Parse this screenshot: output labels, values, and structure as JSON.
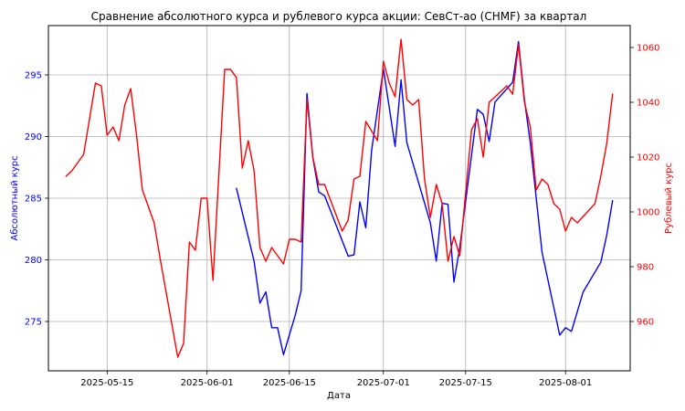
{
  "chart_data": {
    "type": "line",
    "title": "Сравнение абсолютного курса и рублевого курса акции: СевСт-ао (CHMF) за квартал",
    "xlabel": "Дата",
    "ylabel_left": "Абсолютный курс",
    "ylabel_right": "Рублевый курс",
    "grid": true,
    "colors": {
      "abs": "#0000ff",
      "rub": "#ff0000",
      "grid": "#b0b0b0",
      "axis": "#000000"
    },
    "x_ticks": [
      "2025-05-15",
      "2025-06-01",
      "2025-06-15",
      "2025-07-01",
      "2025-07-15",
      "2025-08-01"
    ],
    "x_range": [
      "2025-05-05",
      "2025-08-12"
    ],
    "y_left": {
      "ticks": [
        275,
        280,
        285,
        290,
        295
      ],
      "range": [
        271,
        299
      ]
    },
    "y_right": {
      "ticks": [
        960,
        980,
        1000,
        1020,
        1040,
        1060
      ],
      "range": [
        942,
        1068
      ]
    },
    "series": [
      {
        "axis": "left",
        "color": "#0000ff",
        "points": [
          [
            "2025-06-06",
            285.8
          ],
          [
            "2025-06-09",
            279.9
          ],
          [
            "2025-06-10",
            276.5
          ],
          [
            "2025-06-11",
            277.4
          ],
          [
            "2025-06-12",
            274.5
          ],
          [
            "2025-06-13",
            274.5
          ],
          [
            "2025-06-14",
            272.3
          ],
          [
            "2025-06-16",
            275.5
          ],
          [
            "2025-06-17",
            277.5
          ],
          [
            "2025-06-18",
            293.5
          ],
          [
            "2025-06-19",
            288.3
          ],
          [
            "2025-06-20",
            285.5
          ],
          [
            "2025-06-21",
            285.2
          ],
          [
            "2025-06-22",
            284.0
          ],
          [
            "2025-06-25",
            280.3
          ],
          [
            "2025-06-26",
            280.4
          ],
          [
            "2025-06-27",
            284.7
          ],
          [
            "2025-06-28",
            282.6
          ],
          [
            "2025-06-29",
            288.9
          ],
          [
            "2025-07-01",
            295.5
          ],
          [
            "2025-07-03",
            289.2
          ],
          [
            "2025-07-04",
            294.6
          ],
          [
            "2025-07-05",
            289.5
          ],
          [
            "2025-07-09",
            283.0
          ],
          [
            "2025-07-10",
            279.9
          ],
          [
            "2025-07-11",
            284.6
          ],
          [
            "2025-07-12",
            284.5
          ],
          [
            "2025-07-13",
            278.2
          ],
          [
            "2025-07-14",
            281.0
          ],
          [
            "2025-07-17",
            292.2
          ],
          [
            "2025-07-18",
            291.8
          ],
          [
            "2025-07-19",
            289.6
          ],
          [
            "2025-07-20",
            292.8
          ],
          [
            "2025-07-23",
            294.4
          ],
          [
            "2025-07-24",
            297.7
          ],
          [
            "2025-07-25",
            293.0
          ],
          [
            "2025-07-26",
            289.5
          ],
          [
            "2025-07-28",
            280.6
          ],
          [
            "2025-07-31",
            273.9
          ],
          [
            "2025-08-01",
            274.5
          ],
          [
            "2025-08-02",
            274.2
          ],
          [
            "2025-08-04",
            277.4
          ],
          [
            "2025-08-07",
            279.8
          ],
          [
            "2025-08-08",
            282.0
          ],
          [
            "2025-08-09",
            284.8
          ]
        ]
      },
      {
        "axis": "right",
        "color": "#ff0000",
        "points": [
          [
            "2025-05-08",
            1013
          ],
          [
            "2025-05-09",
            1015
          ],
          [
            "2025-05-11",
            1021
          ],
          [
            "2025-05-13",
            1047
          ],
          [
            "2025-05-14",
            1046
          ],
          [
            "2025-05-15",
            1028
          ],
          [
            "2025-05-16",
            1031
          ],
          [
            "2025-05-17",
            1026
          ],
          [
            "2025-05-18",
            1039
          ],
          [
            "2025-05-19",
            1045
          ],
          [
            "2025-05-20",
            1028
          ],
          [
            "2025-05-21",
            1008
          ],
          [
            "2025-05-23",
            996
          ],
          [
            "2025-05-24",
            983
          ],
          [
            "2025-05-27",
            947
          ],
          [
            "2025-05-28",
            952
          ],
          [
            "2025-05-29",
            989
          ],
          [
            "2025-05-30",
            986
          ],
          [
            "2025-05-31",
            1005
          ],
          [
            "2025-06-01",
            1005
          ],
          [
            "2025-06-02",
            975
          ],
          [
            "2025-06-04",
            1052
          ],
          [
            "2025-06-05",
            1052
          ],
          [
            "2025-06-06",
            1049
          ],
          [
            "2025-06-07",
            1016
          ],
          [
            "2025-06-08",
            1026
          ],
          [
            "2025-06-09",
            1015
          ],
          [
            "2025-06-10",
            987
          ],
          [
            "2025-06-11",
            982
          ],
          [
            "2025-06-12",
            987
          ],
          [
            "2025-06-14",
            981
          ],
          [
            "2025-06-15",
            990
          ],
          [
            "2025-06-16",
            990
          ],
          [
            "2025-06-17",
            989
          ],
          [
            "2025-06-18",
            1041
          ],
          [
            "2025-06-19",
            1020
          ],
          [
            "2025-06-20",
            1010
          ],
          [
            "2025-06-21",
            1010
          ],
          [
            "2025-06-24",
            993
          ],
          [
            "2025-06-25",
            997
          ],
          [
            "2025-06-26",
            1012
          ],
          [
            "2025-06-27",
            1013
          ],
          [
            "2025-06-28",
            1033
          ],
          [
            "2025-06-30",
            1026
          ],
          [
            "2025-07-01",
            1055
          ],
          [
            "2025-07-02",
            1047
          ],
          [
            "2025-07-03",
            1042
          ],
          [
            "2025-07-04",
            1063
          ],
          [
            "2025-07-05",
            1041
          ],
          [
            "2025-07-06",
            1039
          ],
          [
            "2025-07-07",
            1041
          ],
          [
            "2025-07-08",
            1012
          ],
          [
            "2025-07-09",
            998
          ],
          [
            "2025-07-10",
            1010
          ],
          [
            "2025-07-11",
            1003
          ],
          [
            "2025-07-12",
            982
          ],
          [
            "2025-07-13",
            991
          ],
          [
            "2025-07-14",
            984
          ],
          [
            "2025-07-16",
            1030
          ],
          [
            "2025-07-17",
            1034
          ],
          [
            "2025-07-18",
            1020
          ],
          [
            "2025-07-19",
            1040
          ],
          [
            "2025-07-22",
            1046
          ],
          [
            "2025-07-23",
            1043
          ],
          [
            "2025-07-24",
            1061
          ],
          [
            "2025-07-25",
            1040
          ],
          [
            "2025-07-26",
            1031
          ],
          [
            "2025-07-27",
            1008
          ],
          [
            "2025-07-28",
            1012
          ],
          [
            "2025-07-29",
            1010
          ],
          [
            "2025-07-30",
            1003
          ],
          [
            "2025-07-31",
            1001
          ],
          [
            "2025-08-01",
            993
          ],
          [
            "2025-08-02",
            998
          ],
          [
            "2025-08-03",
            996
          ],
          [
            "2025-08-06",
            1003
          ],
          [
            "2025-08-07",
            1013
          ],
          [
            "2025-08-08",
            1025
          ],
          [
            "2025-08-09",
            1043
          ]
        ]
      }
    ]
  }
}
